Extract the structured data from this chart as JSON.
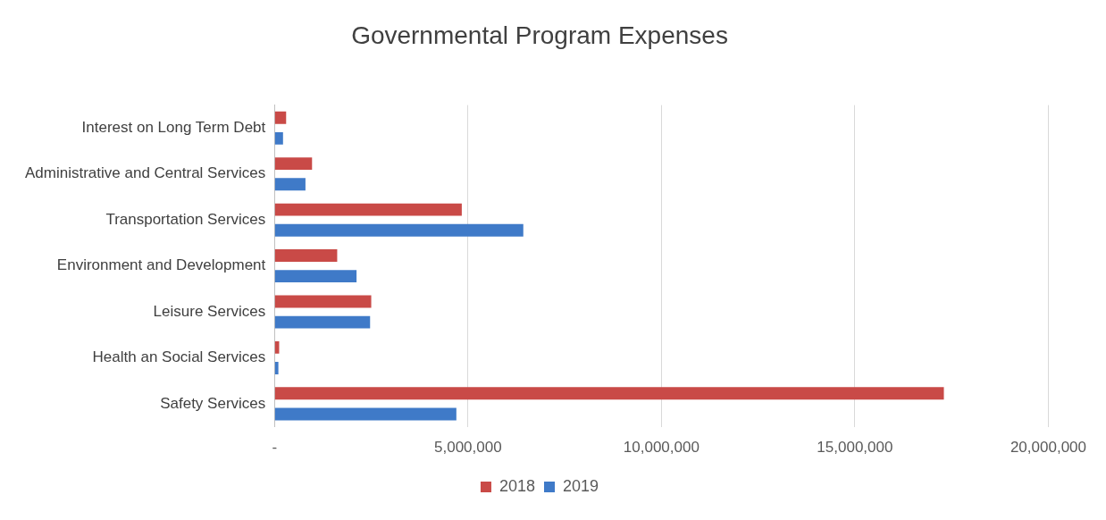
{
  "chart_data": {
    "type": "bar",
    "orientation": "horizontal",
    "title": "Governmental Program Expenses",
    "categories": [
      "Interest on Long Term Debt",
      "Administrative and Central Services",
      "Transportation Services",
      "Environment and Development",
      "Leisure Services",
      "Health an Social Services",
      "Safety Services"
    ],
    "series": [
      {
        "name": "2018",
        "color": "#c94a47",
        "values": [
          300000,
          970000,
          4840000,
          1620000,
          2500000,
          120000,
          17300000
        ]
      },
      {
        "name": "2019",
        "color": "#3f7ac8",
        "values": [
          220000,
          800000,
          6430000,
          2120000,
          2470000,
          100000,
          4700000
        ]
      }
    ],
    "xlim": [
      0,
      20000000
    ],
    "xticks": [
      {
        "value": 0,
        "label": "-"
      },
      {
        "value": 5000000,
        "label": "5,000,000"
      },
      {
        "value": 10000000,
        "label": "10,000,000"
      },
      {
        "value": 15000000,
        "label": "15,000,000"
      },
      {
        "value": 20000000,
        "label": "20,000,000"
      }
    ],
    "grid": "x",
    "legend": "bottom"
  }
}
